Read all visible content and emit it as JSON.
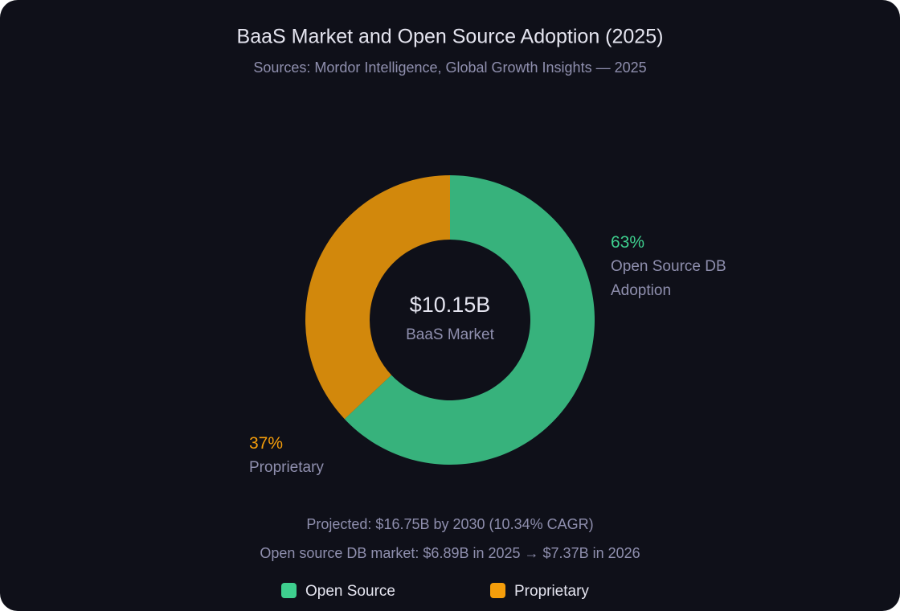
{
  "chart_data": {
    "type": "doughnut",
    "title": "BaaS Market and Open Source Adoption (2025)",
    "subtitle": "Sources: Mordor Intelligence, Global Growth Insights — 2025",
    "categories": [
      "Open Source",
      "Proprietary"
    ],
    "values": [
      63,
      37
    ],
    "value_labels": [
      "63%",
      "37%"
    ],
    "labels": [
      "Open Source DB Adoption",
      "Proprietary"
    ],
    "colors": [
      "#3ecf8e",
      "#f59e0b"
    ],
    "center": {
      "value": "$10.15B",
      "label": "BaaS Market"
    },
    "notes": [
      "Projected: $16.75B by 2030 (10.34% CAGR)",
      "Open source DB market: $6.89B in 2025 → $7.37B in 2026"
    ]
  }
}
